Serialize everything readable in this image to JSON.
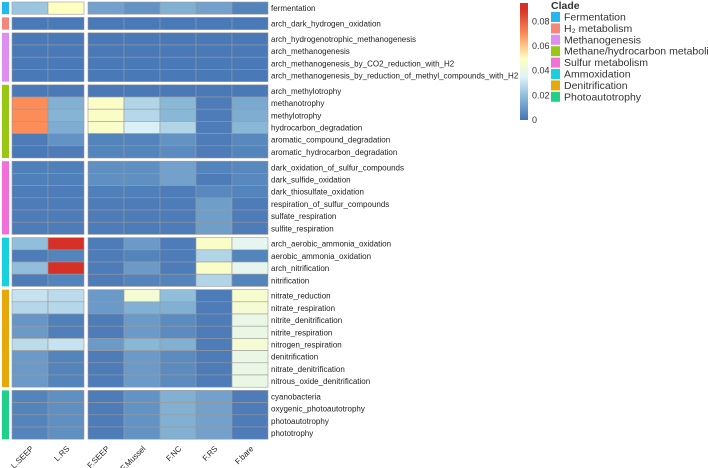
{
  "chart_data": {
    "type": "heatmap",
    "title": "",
    "columns": [
      "L.SEEP",
      "L.RS",
      "F.SEEP",
      "F.Mussel",
      "F.NC",
      "F.RS",
      "F.bare"
    ],
    "column_split_after": 1,
    "colorbar": {
      "ticks": [
        "0",
        "0.02",
        "0.04",
        "0.06",
        "0.08"
      ],
      "tick_values": [
        0,
        0.02,
        0.04,
        0.06,
        0.08
      ],
      "range": [
        0,
        0.095
      ],
      "stops": [
        [
          0,
          "#4575b4"
        ],
        [
          0.02,
          "#91bfdb"
        ],
        [
          0.035,
          "#e0f3f8"
        ],
        [
          0.05,
          "#ffffbf"
        ],
        [
          0.07,
          "#fc8d59"
        ],
        [
          0.09,
          "#d73027"
        ],
        [
          0.095,
          "#d73027"
        ]
      ]
    },
    "legend": {
      "title": "Clade",
      "placement": "top-right"
    },
    "clades": [
      {
        "name": "Fermentation",
        "color": "#27b7ee",
        "rows": [
          {
            "label": "fermentation",
            "values": [
              0.022,
              0.05,
              0.012,
              0.008,
              0.016,
              0.012,
              0.004
            ]
          }
        ]
      },
      {
        "name": "H₂ metabolism",
        "color": "#f4877a",
        "rows": [
          {
            "label": "arch_dark_hydrogen_oxidation",
            "values": [
              0.001,
              0.001,
              0.001,
              0.001,
              0.001,
              0.001,
              0.001
            ]
          }
        ]
      },
      {
        "name": "Methanogenesis",
        "color": "#dd8ef0",
        "rows": [
          {
            "label": "arch_hydrogenotrophic_methanogenesis",
            "values": [
              0.001,
              0.001,
              0.001,
              0.001,
              0.001,
              0.001,
              0.001
            ]
          },
          {
            "label": "arch_methanogenesis",
            "values": [
              0.001,
              0.001,
              0.001,
              0.001,
              0.001,
              0.001,
              0.001
            ]
          },
          {
            "label": "arch_methanogenesis_by_CO2_reduction_with_H2",
            "values": [
              0.001,
              0.001,
              0.001,
              0.001,
              0.001,
              0.001,
              0.001
            ]
          },
          {
            "label": "arch_methanogenesis_by_reduction_of_methyl_compounds_with_H2",
            "values": [
              0.001,
              0.001,
              0.001,
              0.001,
              0.001,
              0.001,
              0.001
            ]
          }
        ]
      },
      {
        "name": "Methane/hydrocarbon metabolism",
        "color": "#99c814",
        "rows": [
          {
            "label": "arch_methylotrophy",
            "values": [
              0.001,
              0.001,
              0.001,
              0.001,
              0.001,
              0.001,
              0.001
            ]
          },
          {
            "label": "methanotrophy",
            "values": [
              0.07,
              0.016,
              0.048,
              0.026,
              0.018,
              0.002,
              0.014
            ]
          },
          {
            "label": "methylotrophy",
            "values": [
              0.07,
              0.017,
              0.048,
              0.027,
              0.018,
              0.002,
              0.015
            ]
          },
          {
            "label": "hydrocarbon_degradation",
            "values": [
              0.07,
              0.015,
              0.047,
              0.034,
              0.026,
              0.002,
              0.018
            ]
          },
          {
            "label": "aromatic_compound_degradation",
            "values": [
              0.002,
              0.008,
              0.004,
              0.004,
              0.008,
              0.002,
              0.005
            ]
          },
          {
            "label": "aromatic_hydrocarbon_degradation",
            "values": [
              0.001,
              0.002,
              0.004,
              0.004,
              0.006,
              0.002,
              0.004
            ]
          }
        ]
      },
      {
        "name": "Sulfur metabolism",
        "color": "#f36fd8",
        "rows": [
          {
            "label": "dark_oxidation_of_sulfur_compounds",
            "values": [
              0.003,
              0.003,
              0.007,
              0.007,
              0.012,
              0.004,
              0.005
            ]
          },
          {
            "label": "dark_sulfide_oxidation",
            "values": [
              0.003,
              0.003,
              0.007,
              0.007,
              0.012,
              0.002,
              0.005
            ]
          },
          {
            "label": "dark_thiosulfate_oxidation",
            "values": [
              0.002,
              0.002,
              0.003,
              0.003,
              0.002,
              0.005,
              0.004
            ]
          },
          {
            "label": "respiration_of_sulfur_compounds",
            "values": [
              0.002,
              0.002,
              0.002,
              0.002,
              0.002,
              0.011,
              0.002
            ]
          },
          {
            "label": "sulfate_respiration",
            "values": [
              0.002,
              0.002,
              0.002,
              0.002,
              0.002,
              0.011,
              0.002
            ]
          },
          {
            "label": "sulfite_respiration",
            "values": [
              0.002,
              0.002,
              0.002,
              0.002,
              0.002,
              0.011,
              0.002
            ]
          }
        ]
      },
      {
        "name": "Ammoxidation",
        "color": "#18d1de",
        "rows": [
          {
            "label": "arch_aerobic_ammonia_oxidation",
            "values": [
              0.02,
              0.09,
              0.002,
              0.01,
              0.002,
              0.048,
              0.038
            ]
          },
          {
            "label": "aerobic_ammonia_oxidation",
            "values": [
              0.002,
              0.004,
              0.002,
              0.004,
              0.002,
              0.026,
              0.004
            ]
          },
          {
            "label": "arch_nitrification",
            "values": [
              0.02,
              0.09,
              0.002,
              0.01,
              0.002,
              0.048,
              0.038
            ]
          },
          {
            "label": "nitrification",
            "values": [
              0.002,
              0.004,
              0.002,
              0.004,
              0.004,
              0.026,
              0.004
            ]
          }
        ]
      },
      {
        "name": "Denitrification",
        "color": "#e8a80c",
        "rows": [
          {
            "label": "nitrate_reduction",
            "values": [
              0.03,
              0.028,
              0.01,
              0.045,
              0.02,
              0.002,
              0.046
            ]
          },
          {
            "label": "nitrate_respiration",
            "values": [
              0.027,
              0.027,
              0.01,
              0.016,
              0.016,
              0.002,
              0.045
            ]
          },
          {
            "label": "nitrite_denitrification",
            "values": [
              0.009,
              0.003,
              0.002,
              0.01,
              0.006,
              0.002,
              0.04
            ]
          },
          {
            "label": "nitrite_respiration",
            "values": [
              0.01,
              0.003,
              0.002,
              0.01,
              0.006,
              0.002,
              0.04
            ]
          },
          {
            "label": "nitrogen_respiration",
            "values": [
              0.028,
              0.03,
              0.01,
              0.018,
              0.016,
              0.002,
              0.045
            ]
          },
          {
            "label": "denitrification",
            "values": [
              0.01,
              0.004,
              0.002,
              0.01,
              0.006,
              0.002,
              0.04
            ]
          },
          {
            "label": "nitrate_denitrification",
            "values": [
              0.01,
              0.004,
              0.002,
              0.01,
              0.006,
              0.002,
              0.04
            ]
          },
          {
            "label": "nitrous_oxide_denitrification",
            "values": [
              0.01,
              0.004,
              0.002,
              0.01,
              0.006,
              0.002,
              0.04
            ]
          }
        ]
      },
      {
        "name": "Photoautotrophy",
        "color": "#1ed08a",
        "rows": [
          {
            "label": "cyanobacteria",
            "values": [
              0.004,
              0.007,
              0.002,
              0.008,
              0.016,
              0.012,
              0.002
            ]
          },
          {
            "label": "oxygenic_photoautotrophy",
            "values": [
              0.004,
              0.007,
              0.002,
              0.008,
              0.016,
              0.012,
              0.002
            ]
          },
          {
            "label": "photoautotrophy",
            "values": [
              0.004,
              0.007,
              0.002,
              0.008,
              0.016,
              0.012,
              0.002
            ]
          },
          {
            "label": "phototrophy",
            "values": [
              0.004,
              0.007,
              0.002,
              0.008,
              0.016,
              0.012,
              0.002
            ]
          }
        ]
      }
    ]
  }
}
